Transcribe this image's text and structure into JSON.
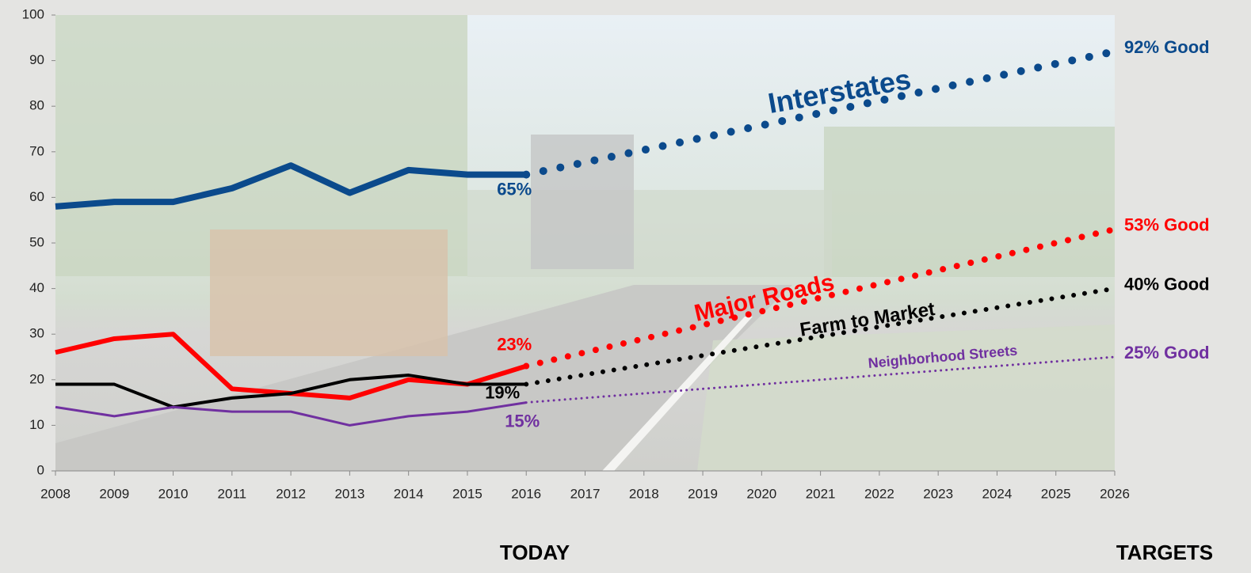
{
  "chart_data": {
    "type": "line",
    "xlim": [
      2008,
      2026
    ],
    "xticks": [
      2008,
      2009,
      2010,
      2011,
      2012,
      2013,
      2014,
      2015,
      2016,
      2017,
      2018,
      2019,
      2020,
      2021,
      2022,
      2023,
      2024,
      2025,
      2026
    ],
    "ylim": [
      0,
      100
    ],
    "yticks": [
      0,
      10,
      20,
      30,
      40,
      50,
      60,
      70,
      80,
      90,
      100
    ],
    "grid": false,
    "series": [
      {
        "color": "#0b4a8c",
        "style": "solid",
        "x": [
          2008,
          2009,
          2010,
          2011,
          2012,
          2013,
          2014,
          2015,
          2016
        ],
        "values": [
          58,
          59,
          59,
          62,
          67,
          61,
          66,
          65,
          65
        ],
        "value_labels": [
          null,
          null,
          null,
          null,
          null,
          null,
          null,
          null,
          "65%"
        ]
      },
      {
        "color": "#ff0000",
        "style": "solid",
        "x": [
          2008,
          2009,
          2010,
          2011,
          2012,
          2013,
          2014,
          2015,
          2016
        ],
        "values": [
          26,
          29,
          30,
          18,
          17,
          16,
          20,
          19,
          23
        ],
        "value_labels": [
          null,
          null,
          null,
          null,
          null,
          null,
          null,
          null,
          "23%"
        ]
      },
      {
        "color": "#000000",
        "style": "solid",
        "x": [
          2008,
          2009,
          2010,
          2011,
          2012,
          2013,
          2014,
          2015,
          2016
        ],
        "values": [
          19,
          19,
          14,
          16,
          17,
          20,
          21,
          19,
          19
        ],
        "value_labels": [
          null,
          null,
          null,
          null,
          null,
          null,
          null,
          null,
          "19%"
        ]
      },
      {
        "color": "#7030a0",
        "style": "solid",
        "x": [
          2008,
          2009,
          2010,
          2011,
          2012,
          2013,
          2014,
          2015,
          2016
        ],
        "values": [
          14,
          12,
          14,
          13,
          13,
          10,
          12,
          13,
          15
        ],
        "value_labels": [
          null,
          null,
          null,
          null,
          null,
          null,
          null,
          null,
          "15%"
        ]
      },
      {
        "name": "Interstates",
        "color": "#0b4a8c",
        "style": "dotted",
        "x": [
          2016,
          2026
        ],
        "values": [
          65,
          92
        ],
        "value_labels": [
          null,
          "92% Good"
        ]
      },
      {
        "name": "Major Roads",
        "color": "#ff0000",
        "style": "dotted",
        "x": [
          2016,
          2026
        ],
        "values": [
          23,
          53
        ],
        "value_labels": [
          null,
          "53% Good"
        ]
      },
      {
        "name": "Farm to Market",
        "color": "#000000",
        "style": "dotted",
        "x": [
          2016,
          2026
        ],
        "values": [
          19,
          40
        ],
        "value_labels": [
          null,
          "40% Good"
        ]
      },
      {
        "name": "Neighborhood Streets",
        "color": "#7030a0",
        "style": "dotted",
        "x": [
          2016,
          2026
        ],
        "values": [
          15,
          25
        ],
        "value_labels": [
          null,
          "25% Good"
        ]
      }
    ],
    "annotations": [
      "TODAY",
      "TARGETS"
    ]
  }
}
